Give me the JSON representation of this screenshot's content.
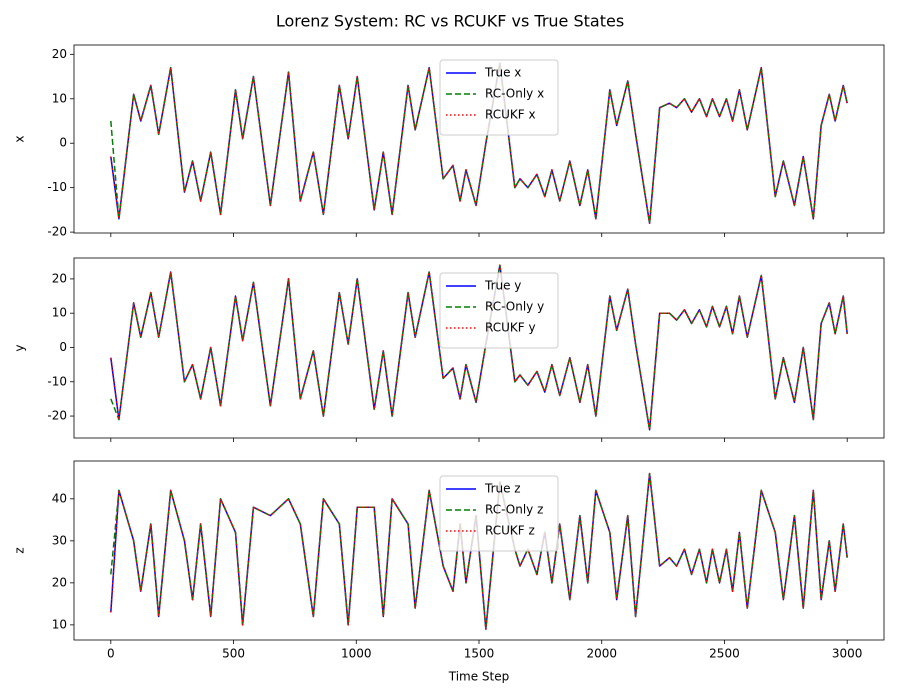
{
  "title": "Lorenz System: RC vs RCUKF vs True States",
  "chart_data": [
    {
      "type": "line",
      "ylabel": "x",
      "xlim": [
        -150,
        3150
      ],
      "xticks": [
        0,
        500,
        1000,
        1500,
        2000,
        2500,
        3000
      ],
      "show_xticklabels": false,
      "ylim": [
        -20.2,
        22.1
      ],
      "yticks": [
        -20,
        -10,
        0,
        10,
        20
      ],
      "legend": "upper center",
      "x": [
        0,
        33,
        93,
        122,
        163,
        195,
        244,
        300,
        333,
        366,
        407,
        447,
        508,
        537,
        581,
        650,
        724,
        772,
        825,
        866,
        931,
        967,
        1004,
        1073,
        1110,
        1146,
        1211,
        1240,
        1297,
        1354,
        1394,
        1423,
        1447,
        1488,
        1528,
        1585,
        1646,
        1667,
        1699,
        1736,
        1768,
        1797,
        1829,
        1870,
        1911,
        1943,
        1976,
        2033,
        2061,
        2106,
        2138,
        2195,
        2236,
        2276,
        2305,
        2337,
        2366,
        2398,
        2427,
        2451,
        2480,
        2508,
        2533,
        2561,
        2593,
        2650,
        2707,
        2740,
        2785,
        2821,
        2862,
        2894,
        2927,
        2951,
        2984,
        3000
      ],
      "series": [
        {
          "name": "True x",
          "color": "#0000ff",
          "dash": "solid",
          "values": [
            -3,
            -17,
            11,
            5,
            13,
            2,
            17,
            -11,
            -4,
            -13,
            -2,
            -16,
            12,
            1,
            15,
            -14,
            16,
            -13,
            -2,
            -16,
            13,
            1,
            15,
            -15,
            -2,
            -16,
            13,
            3,
            17,
            -8,
            -5,
            -13,
            -6,
            -14,
            0,
            18,
            -10,
            -8,
            -10,
            -7,
            -12,
            -6,
            -13,
            -4,
            -14,
            -6,
            -17,
            12,
            4,
            14,
            2,
            -18,
            8,
            9,
            8,
            10,
            7,
            10,
            6,
            10,
            6,
            10,
            5,
            12,
            3,
            17,
            -12,
            -4,
            -14,
            -3,
            -17,
            4,
            11,
            5,
            13,
            9
          ]
        },
        {
          "name": "RC-Only x",
          "color": "#008000",
          "dash": "dashed",
          "values": [
            5,
            -17,
            11,
            5,
            13,
            2,
            17,
            -11,
            -4,
            -13,
            -2,
            -16,
            12,
            1,
            15,
            -14,
            16,
            -13,
            -2,
            -16,
            13,
            1,
            15,
            -15,
            -2,
            -16,
            13,
            3,
            17,
            -8,
            -5,
            -13,
            -6,
            -14,
            0,
            18,
            -10,
            -8,
            -10,
            -7,
            -12,
            -6,
            -13,
            -4,
            -14,
            -6,
            -17,
            12,
            4,
            14,
            2,
            -18,
            8,
            9,
            8,
            10,
            7,
            10,
            6,
            10,
            6,
            10,
            5,
            12,
            3,
            17,
            -12,
            -4,
            -14,
            -3,
            -17,
            4,
            11,
            5,
            13,
            9
          ]
        },
        {
          "name": "RCUKF x",
          "color": "#ff0000",
          "dash": "dotted",
          "values": [
            -3,
            -17,
            11,
            5,
            13,
            2,
            17,
            -11,
            -4,
            -13,
            -2,
            -16,
            12,
            1,
            15,
            -14,
            16,
            -13,
            -2,
            -16,
            13,
            1,
            15,
            -15,
            -2,
            -16,
            13,
            3,
            17,
            -8,
            -5,
            -13,
            -6,
            -14,
            0,
            18,
            -10,
            -8,
            -10,
            -7,
            -12,
            -6,
            -13,
            -4,
            -14,
            -6,
            -17,
            12,
            4,
            14,
            2,
            -18,
            8,
            9,
            8,
            10,
            7,
            10,
            6,
            10,
            6,
            10,
            5,
            12,
            3,
            17,
            -12,
            -4,
            -14,
            -3,
            -17,
            4,
            11,
            5,
            13,
            9
          ]
        }
      ]
    },
    {
      "type": "line",
      "ylabel": "y",
      "xlim": [
        -150,
        3150
      ],
      "xticks": [
        0,
        500,
        1000,
        1500,
        2000,
        2500,
        3000
      ],
      "show_xticklabels": false,
      "ylim": [
        -26.4,
        26.1
      ],
      "yticks": [
        -20,
        -10,
        0,
        10,
        20
      ],
      "legend": "upper center",
      "x": [
        0,
        33,
        93,
        122,
        163,
        195,
        244,
        300,
        333,
        366,
        407,
        447,
        508,
        537,
        581,
        650,
        724,
        772,
        825,
        866,
        931,
        967,
        1004,
        1073,
        1110,
        1146,
        1211,
        1240,
        1297,
        1354,
        1394,
        1423,
        1447,
        1488,
        1528,
        1585,
        1646,
        1667,
        1699,
        1736,
        1768,
        1797,
        1829,
        1870,
        1911,
        1943,
        1976,
        2033,
        2061,
        2106,
        2138,
        2195,
        2236,
        2276,
        2305,
        2337,
        2366,
        2398,
        2427,
        2451,
        2480,
        2508,
        2533,
        2561,
        2593,
        2650,
        2707,
        2740,
        2785,
        2821,
        2862,
        2894,
        2927,
        2951,
        2984,
        3000
      ],
      "series": [
        {
          "name": "True y",
          "color": "#0000ff",
          "dash": "solid",
          "values": [
            -3,
            -21,
            13,
            3,
            16,
            3,
            22,
            -10,
            -5,
            -15,
            0,
            -17,
            15,
            2,
            19,
            -17,
            20,
            -15,
            -1,
            -20,
            16,
            1,
            20,
            -18,
            -1,
            -20,
            16,
            3,
            22,
            -9,
            -6,
            -15,
            -5,
            -16,
            1,
            24,
            -10,
            -8,
            -11,
            -7,
            -13,
            -5,
            -14,
            -3,
            -16,
            -5,
            -20,
            15,
            5,
            17,
            1,
            -24,
            10,
            10,
            8,
            11,
            7,
            11,
            6,
            12,
            6,
            12,
            4,
            15,
            3,
            21,
            -15,
            -3,
            -16,
            0,
            -21,
            7,
            13,
            4,
            15,
            4
          ]
        },
        {
          "name": "RC-Only y",
          "color": "#008000",
          "dash": "dashed",
          "values": [
            -15,
            -21,
            13,
            3,
            16,
            3,
            22,
            -10,
            -5,
            -15,
            0,
            -17,
            15,
            2,
            19,
            -17,
            20,
            -15,
            -1,
            -20,
            16,
            1,
            20,
            -18,
            -1,
            -20,
            16,
            3,
            22,
            -9,
            -6,
            -15,
            -5,
            -16,
            1,
            24,
            -10,
            -8,
            -11,
            -7,
            -13,
            -5,
            -14,
            -3,
            -16,
            -5,
            -20,
            15,
            5,
            17,
            1,
            -24,
            10,
            10,
            8,
            11,
            7,
            11,
            6,
            12,
            6,
            12,
            4,
            15,
            3,
            21,
            -15,
            -3,
            -16,
            0,
            -21,
            7,
            13,
            4,
            15,
            4
          ]
        },
        {
          "name": "RCUKF y",
          "color": "#ff0000",
          "dash": "dotted",
          "values": [
            -3,
            -21,
            13,
            3,
            16,
            3,
            22,
            -10,
            -5,
            -15,
            0,
            -17,
            15,
            2,
            19,
            -17,
            20,
            -15,
            -1,
            -20,
            16,
            1,
            20,
            -18,
            -1,
            -20,
            16,
            3,
            22,
            -9,
            -6,
            -15,
            -5,
            -16,
            1,
            24,
            -10,
            -8,
            -11,
            -7,
            -13,
            -5,
            -14,
            -3,
            -16,
            -5,
            -20,
            15,
            5,
            17,
            1,
            -24,
            10,
            10,
            8,
            11,
            7,
            11,
            6,
            12,
            6,
            12,
            4,
            15,
            3,
            21,
            -15,
            -3,
            -16,
            0,
            -21,
            7,
            13,
            4,
            15,
            4
          ]
        }
      ]
    },
    {
      "type": "line",
      "ylabel": "z",
      "xlabel": "Time Step",
      "xlim": [
        -150,
        3150
      ],
      "xticks": [
        0,
        500,
        1000,
        1500,
        2000,
        2500,
        3000
      ],
      "show_xticklabels": true,
      "ylim": [
        6.4,
        49
      ],
      "yticks": [
        10,
        20,
        30,
        40
      ],
      "legend": "upper center",
      "x": [
        0,
        33,
        93,
        122,
        163,
        195,
        244,
        300,
        333,
        366,
        407,
        447,
        508,
        537,
        581,
        650,
        724,
        772,
        825,
        866,
        931,
        967,
        1004,
        1073,
        1110,
        1146,
        1211,
        1240,
        1297,
        1354,
        1394,
        1423,
        1447,
        1488,
        1528,
        1585,
        1646,
        1667,
        1699,
        1736,
        1768,
        1797,
        1829,
        1870,
        1911,
        1943,
        1976,
        2033,
        2061,
        2106,
        2138,
        2195,
        2236,
        2276,
        2305,
        2337,
        2366,
        2398,
        2427,
        2451,
        2480,
        2508,
        2533,
        2561,
        2593,
        2650,
        2707,
        2740,
        2785,
        2821,
        2862,
        2894,
        2927,
        2951,
        2984,
        3000
      ],
      "series": [
        {
          "name": "True z",
          "color": "#0000ff",
          "dash": "solid",
          "values": [
            13,
            42,
            30,
            18,
            34,
            12,
            42,
            30,
            16,
            34,
            12,
            40,
            32,
            10,
            38,
            36,
            40,
            34,
            12,
            40,
            34,
            10,
            38,
            38,
            12,
            40,
            34,
            14,
            42,
            24,
            18,
            34,
            20,
            36,
            9,
            44,
            28,
            24,
            28,
            22,
            32,
            20,
            34,
            16,
            36,
            20,
            42,
            32,
            16,
            36,
            12,
            46,
            24,
            26,
            24,
            28,
            22,
            28,
            20,
            28,
            20,
            28,
            18,
            32,
            14,
            42,
            32,
            16,
            36,
            14,
            42,
            16,
            30,
            18,
            34,
            26
          ]
        },
        {
          "name": "RC-Only z",
          "color": "#008000",
          "dash": "dashed",
          "values": [
            22,
            42,
            30,
            18,
            34,
            12,
            42,
            30,
            16,
            34,
            12,
            40,
            32,
            10,
            38,
            36,
            40,
            34,
            12,
            40,
            34,
            10,
            38,
            38,
            12,
            40,
            34,
            14,
            42,
            24,
            18,
            34,
            20,
            36,
            9,
            44,
            28,
            24,
            28,
            22,
            32,
            20,
            34,
            16,
            36,
            20,
            42,
            32,
            16,
            36,
            12,
            46,
            24,
            26,
            24,
            28,
            22,
            28,
            20,
            28,
            20,
            28,
            18,
            32,
            14,
            42,
            32,
            16,
            36,
            14,
            42,
            16,
            30,
            18,
            34,
            26
          ]
        },
        {
          "name": "RCUKF z",
          "color": "#ff0000",
          "dash": "dotted",
          "values": [
            13,
            42,
            30,
            18,
            34,
            12,
            42,
            30,
            16,
            34,
            12,
            40,
            32,
            10,
            38,
            36,
            40,
            34,
            12,
            40,
            34,
            10,
            38,
            38,
            12,
            40,
            34,
            14,
            42,
            24,
            18,
            34,
            20,
            36,
            9,
            44,
            28,
            24,
            28,
            22,
            32,
            20,
            34,
            16,
            36,
            20,
            42,
            32,
            16,
            36,
            12,
            46,
            24,
            26,
            24,
            28,
            22,
            28,
            20,
            28,
            20,
            28,
            18,
            32,
            14,
            42,
            32,
            16,
            36,
            14,
            42,
            16,
            30,
            18,
            34,
            26
          ]
        }
      ]
    }
  ]
}
